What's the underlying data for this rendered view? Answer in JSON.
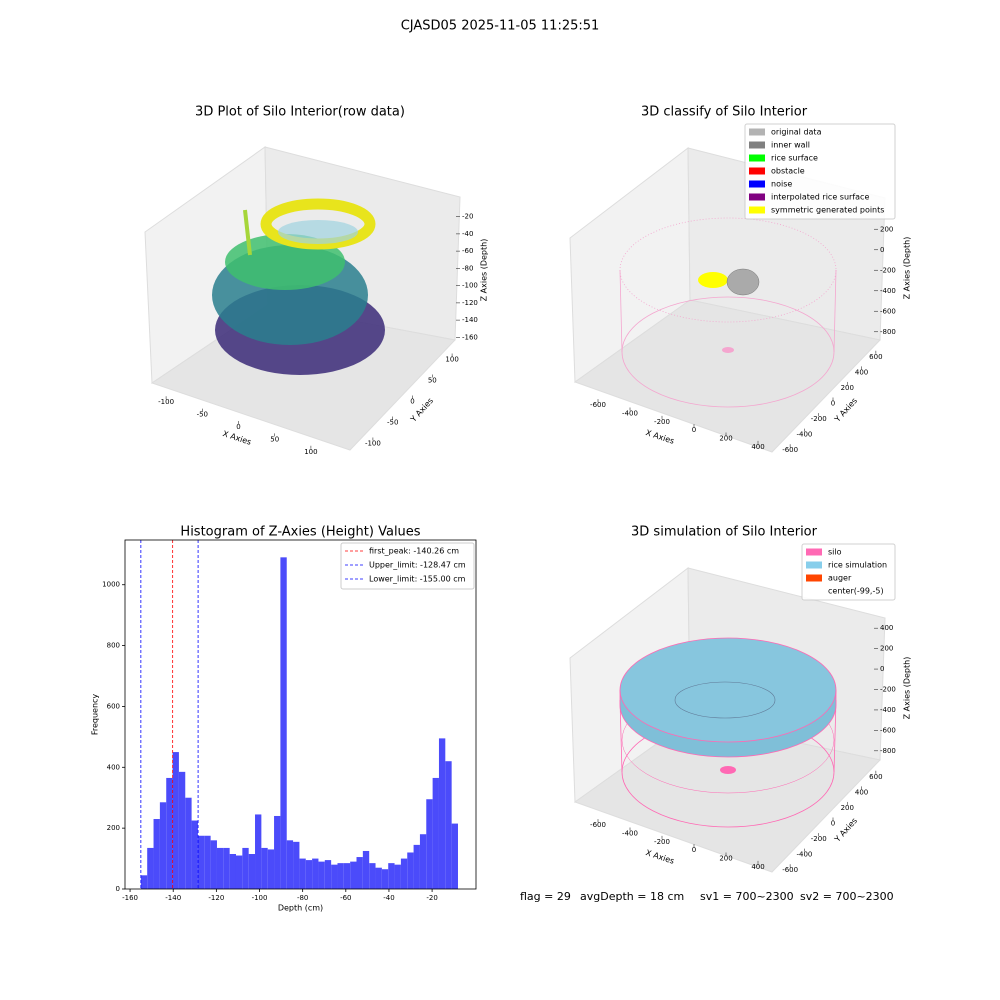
{
  "suptitle": "CJASD05 2025-11-05 11:25:51",
  "chart_data": [
    {
      "type": "scatter3d",
      "title": "3D Plot of Silo Interior(row data)",
      "xlabel": "X Axies",
      "ylabel": "Y Axies",
      "zlabel": "Z Axies (Depth)",
      "xlim": [
        -125,
        125
      ],
      "xticks": [
        -100,
        -50,
        0,
        50,
        100
      ],
      "ylim": [
        -125,
        125
      ],
      "yticks": [
        -100,
        -50,
        0,
        50,
        100
      ],
      "zlim": [
        -170,
        -10
      ],
      "zticks": [
        -160,
        -140,
        -120,
        -100,
        -80,
        -60,
        -40,
        -20
      ]
    },
    {
      "type": "scatter3d",
      "title": "3D classify of Silo Interior",
      "xlabel": "X Axies",
      "ylabel": "Y Axies",
      "zlabel": "Z Axies (Depth)",
      "xlim": [
        -700,
        500
      ],
      "xticks": [
        -600,
        -400,
        -200,
        0,
        200,
        400
      ],
      "ylim": [
        -700,
        700
      ],
      "yticks": [
        -600,
        -400,
        -200,
        0,
        200,
        400,
        600
      ],
      "zlim": [
        -900,
        300
      ],
      "zticks": [
        -800,
        -600,
        -400,
        -200,
        0,
        200
      ],
      "legend": [
        {
          "name": "original data",
          "color": "#b3b3b3"
        },
        {
          "name": "inner wall",
          "color": "#808080"
        },
        {
          "name": "rice surface",
          "color": "#00ff00"
        },
        {
          "name": "obstacle",
          "color": "#ff0000"
        },
        {
          "name": "noise",
          "color": "#0000ff"
        },
        {
          "name": "interpolated rice surface",
          "color": "#800080"
        },
        {
          "name": "symmetric generated points",
          "color": "#ffff00"
        }
      ]
    },
    {
      "type": "histogram",
      "title": "Histogram of Z-Axies (Height) Values",
      "xlabel": "Depth (cm)",
      "ylabel": "Frequency",
      "color": "#4b4bfa",
      "bins": [
        -155,
        -152.06,
        -149.12,
        -146.18,
        -143.24,
        -140.3,
        -137.36,
        -134.42,
        -131.48,
        -128.54,
        -125.6,
        -122.66,
        -119.72,
        -116.78,
        -113.84,
        -110.9,
        -107.96,
        -105.02,
        -102.08,
        -99.14,
        -96.2,
        -93.26,
        -90.32,
        -87.38,
        -84.44,
        -81.5,
        -78.56,
        -75.62,
        -72.68,
        -69.74,
        -66.8,
        -63.86,
        -60.92,
        -57.98,
        -55.04,
        -52.1,
        -49.16,
        -46.22,
        -43.28,
        -40.34,
        -37.4,
        -34.46,
        -31.52,
        -28.58,
        -25.64,
        -22.7,
        -19.76,
        -16.82,
        -13.88,
        -10.94,
        -8
      ],
      "values": [
        45,
        135,
        230,
        285,
        365,
        450,
        385,
        300,
        225,
        175,
        175,
        160,
        135,
        135,
        115,
        110,
        135,
        115,
        245,
        135,
        130,
        240,
        1090,
        160,
        155,
        100,
        95,
        100,
        90,
        95,
        80,
        85,
        85,
        90,
        105,
        125,
        85,
        70,
        65,
        85,
        80,
        100,
        120,
        145,
        180,
        295,
        365,
        495,
        420,
        215
      ],
      "vlines": [
        {
          "name": "first_peak: -140.26 cm",
          "value": -140.26,
          "color": "#ff0000"
        },
        {
          "name": "Upper_limit: -128.47 cm",
          "value": -128.47,
          "color": "#0000ff"
        },
        {
          "name": "Lower_limit: -155.00 cm",
          "value": -155,
          "color": "#0000ff"
        }
      ],
      "xlim": [
        -162.35,
        0.35
      ],
      "xticks": [
        -160,
        -140,
        -120,
        -100,
        -80,
        -60,
        -40,
        -20
      ],
      "ylim": [
        0,
        1147
      ],
      "yticks": [
        0,
        200,
        400,
        600,
        800,
        1000
      ]
    },
    {
      "type": "surface3d",
      "title": "3D simulation of Silo Interior",
      "xlabel": "X Axies",
      "ylabel": "Y Axies",
      "zlabel": "Z Axies (Depth)",
      "xlim": [
        -700,
        500
      ],
      "xticks": [
        -600,
        -400,
        -200,
        0,
        200,
        400
      ],
      "ylim": [
        -700,
        700
      ],
      "yticks": [
        -600,
        -400,
        -200,
        0,
        200,
        400,
        600
      ],
      "zlim": [
        -900,
        500
      ],
      "zticks": [
        -800,
        -600,
        -400,
        -200,
        0,
        200,
        400
      ],
      "legend": [
        {
          "name": "silo",
          "color": "#ff69b4"
        },
        {
          "name": "rice simulation",
          "color": "#87ceeb"
        },
        {
          "name": "auger",
          "color": "#ff4500"
        },
        {
          "name": "center(-99,-5)",
          "color": "#ffffff"
        }
      ]
    }
  ],
  "footer": [
    "flag = 29",
    "avgDepth = 18 cm",
    "sv1 = 700~2300",
    "sv2 = 700~2300"
  ]
}
